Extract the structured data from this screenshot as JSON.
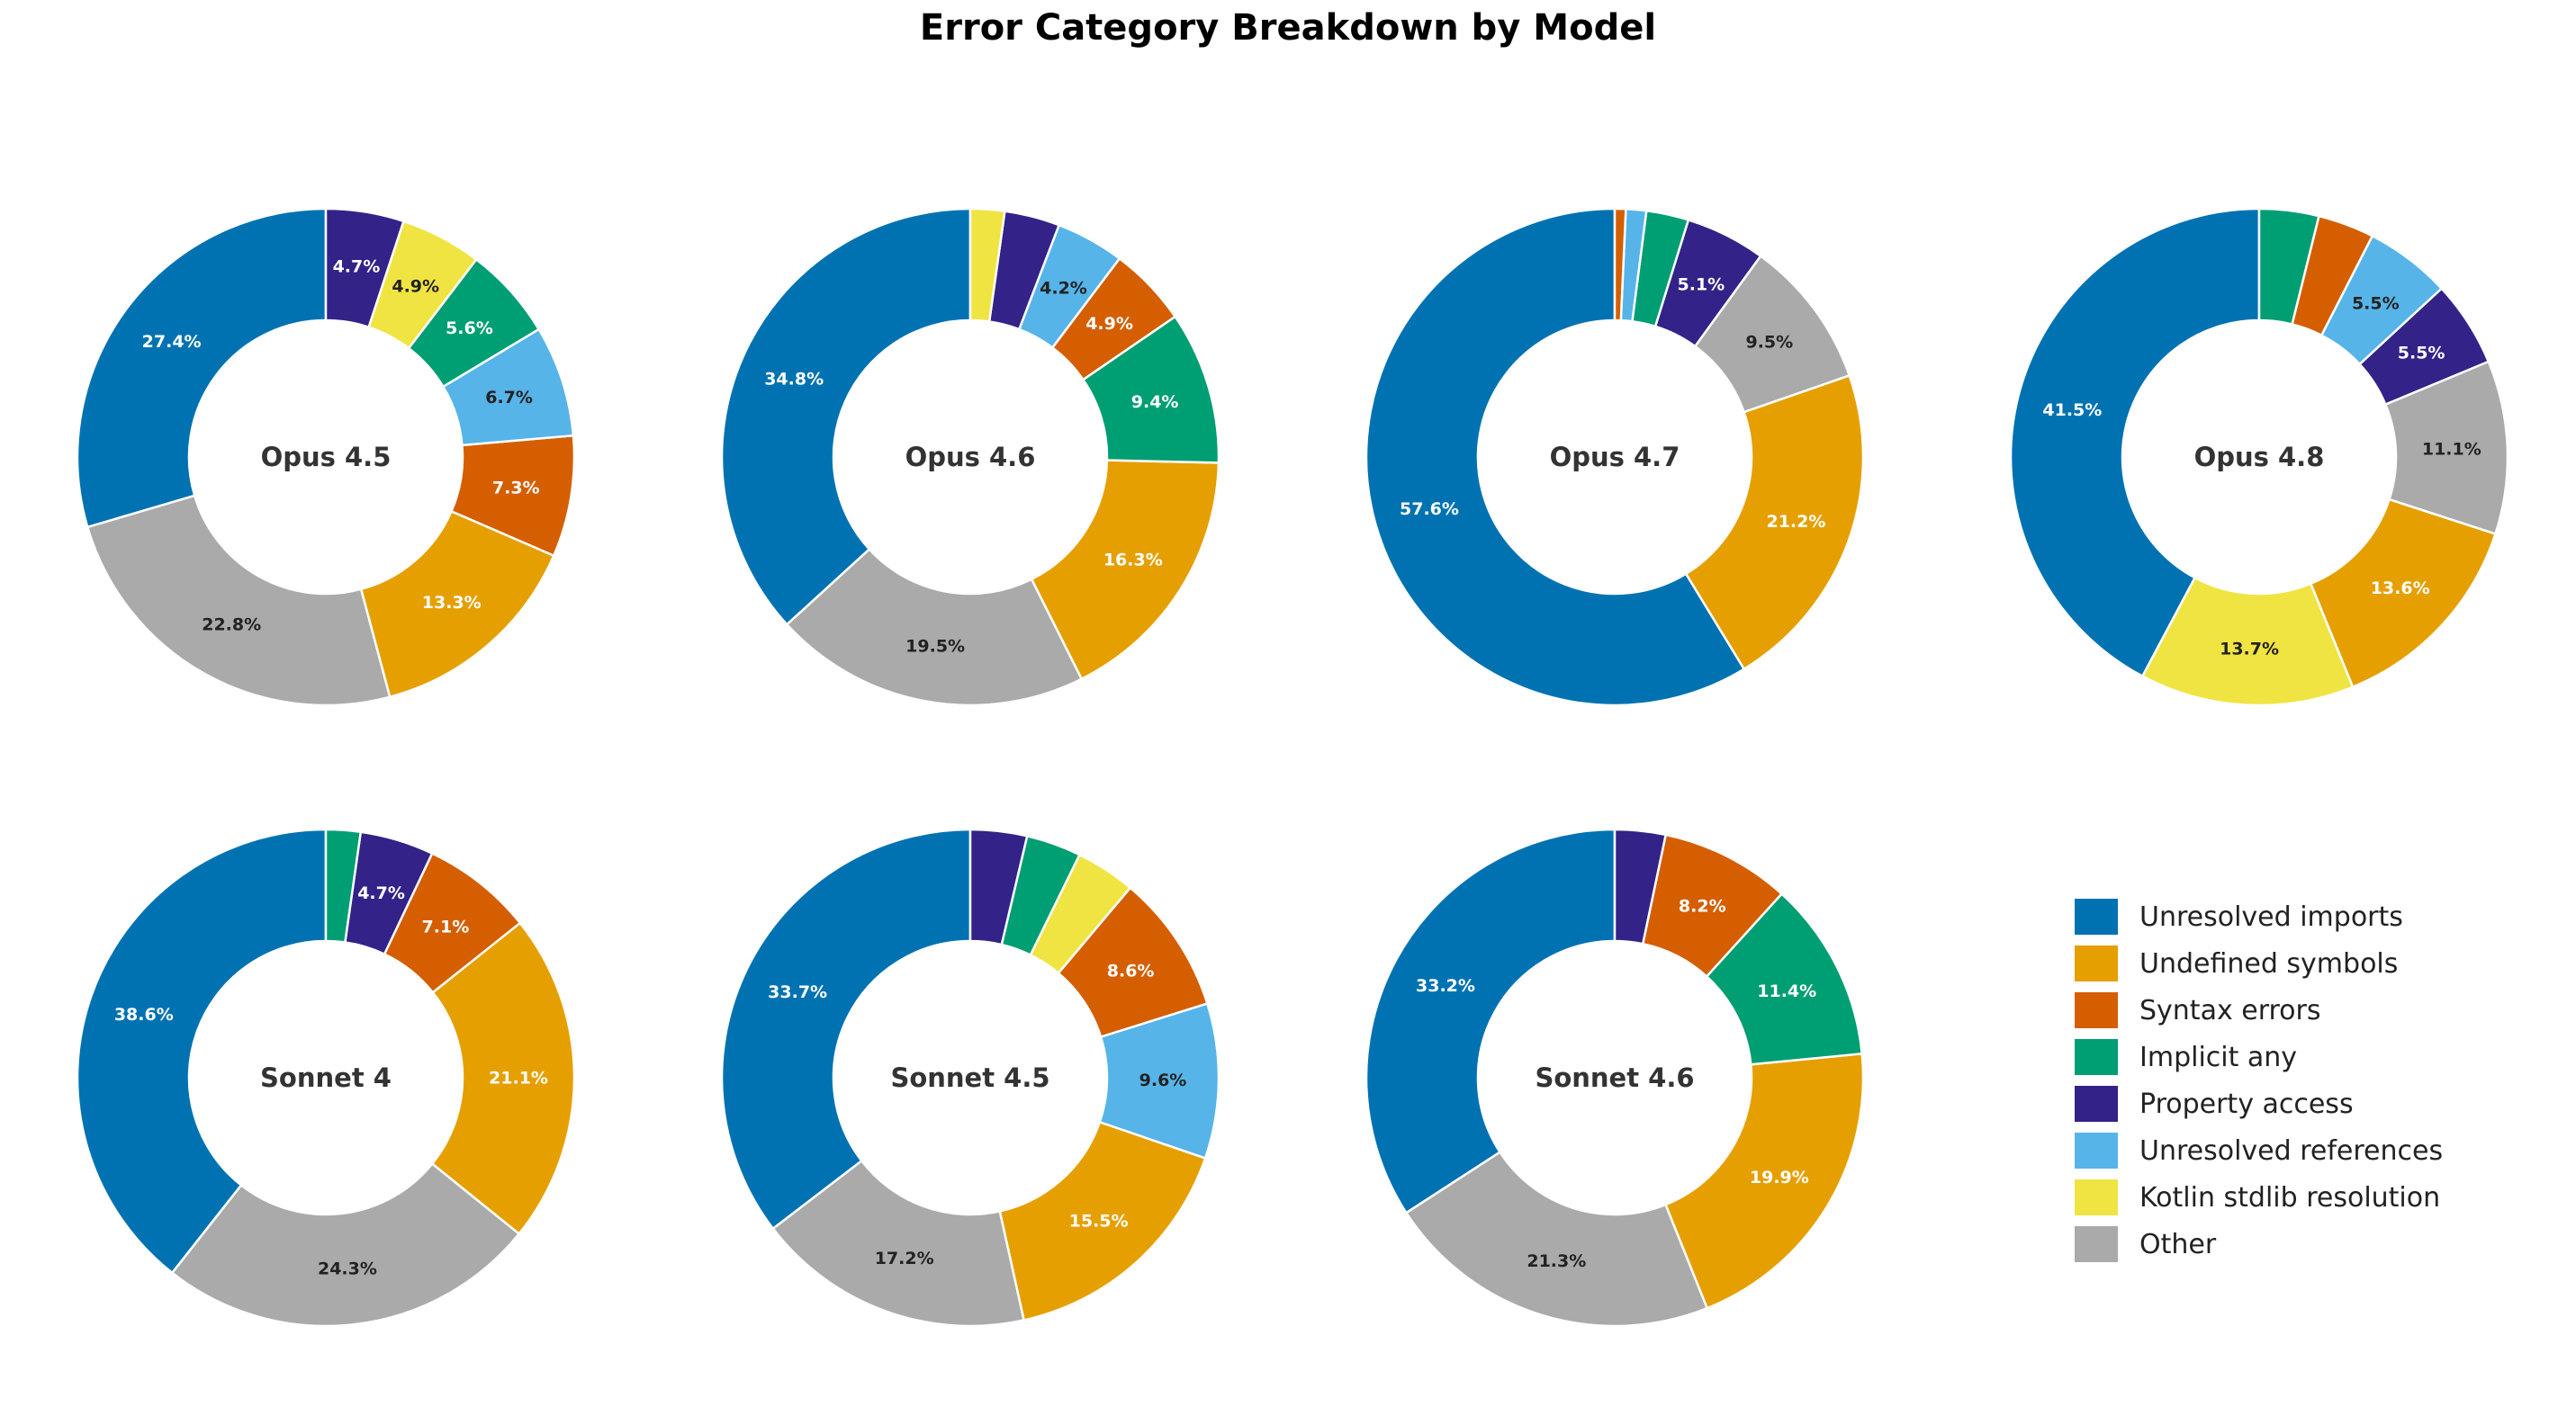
{
  "title": "Error Category Breakdown by Model",
  "categories": [
    {
      "name": "Unresolved imports",
      "color": "#0072B2"
    },
    {
      "name": "Undefined symbols",
      "color": "#E69F00"
    },
    {
      "name": "Syntax errors",
      "color": "#D55E00"
    },
    {
      "name": "Implicit any",
      "color": "#009E73"
    },
    {
      "name": "Property access",
      "color": "#332288"
    },
    {
      "name": "Unresolved references",
      "color": "#56B4E9"
    },
    {
      "name": "Kotlin stdlib resolution",
      "color": "#F0E442"
    },
    {
      "name": "Other",
      "color": "#AAAAAA"
    }
  ],
  "chart_data": [
    {
      "type": "pie",
      "name": "Opus 4.5",
      "slices": [
        {
          "category": "Unresolved imports",
          "value": 27.4
        },
        {
          "category": "Other",
          "value": 22.8
        },
        {
          "category": "Undefined symbols",
          "value": 13.3
        },
        {
          "category": "Syntax errors",
          "value": 7.3
        },
        {
          "category": "Unresolved references",
          "value": 6.7
        },
        {
          "category": "Implicit any",
          "value": 5.6
        },
        {
          "category": "Kotlin stdlib resolution",
          "value": 4.9
        },
        {
          "category": "Property access",
          "value": 4.7
        }
      ]
    },
    {
      "type": "pie",
      "name": "Opus 4.6",
      "slices": [
        {
          "category": "Unresolved imports",
          "value": 34.8
        },
        {
          "category": "Other",
          "value": 19.5
        },
        {
          "category": "Undefined symbols",
          "value": 16.3
        },
        {
          "category": "Implicit any",
          "value": 9.4
        },
        {
          "category": "Syntax errors",
          "value": 4.9
        },
        {
          "category": "Unresolved references",
          "value": 4.2
        },
        {
          "category": "Property access",
          "value": 3.4
        },
        {
          "category": "Kotlin stdlib resolution",
          "value": 2.1
        }
      ]
    },
    {
      "type": "pie",
      "name": "Opus 4.7",
      "slices": [
        {
          "category": "Unresolved imports",
          "value": 57.6
        },
        {
          "category": "Undefined symbols",
          "value": 21.2
        },
        {
          "category": "Other",
          "value": 9.5
        },
        {
          "category": "Property access",
          "value": 5.1
        },
        {
          "category": "Implicit any",
          "value": 2.7
        },
        {
          "category": "Unresolved references",
          "value": 1.3
        },
        {
          "category": "Syntax errors",
          "value": 0.7
        }
      ]
    },
    {
      "type": "pie",
      "name": "Opus 4.8",
      "slices": [
        {
          "category": "Unresolved imports",
          "value": 41.5
        },
        {
          "category": "Kotlin stdlib resolution",
          "value": 13.7
        },
        {
          "category": "Undefined symbols",
          "value": 13.6
        },
        {
          "category": "Other",
          "value": 11.1
        },
        {
          "category": "Property access",
          "value": 5.5
        },
        {
          "category": "Unresolved references",
          "value": 5.5
        },
        {
          "category": "Syntax errors",
          "value": 3.6
        },
        {
          "category": "Implicit any",
          "value": 3.8
        }
      ]
    },
    {
      "type": "pie",
      "name": "Sonnet 4",
      "slices": [
        {
          "category": "Unresolved imports",
          "value": 38.6
        },
        {
          "category": "Other",
          "value": 24.3
        },
        {
          "category": "Undefined symbols",
          "value": 21.1
        },
        {
          "category": "Syntax errors",
          "value": 7.1
        },
        {
          "category": "Property access",
          "value": 4.7
        },
        {
          "category": "Implicit any",
          "value": 2.2
        }
      ]
    },
    {
      "type": "pie",
      "name": "Sonnet 4.5",
      "slices": [
        {
          "category": "Unresolved imports",
          "value": 33.7
        },
        {
          "category": "Other",
          "value": 17.2
        },
        {
          "category": "Undefined symbols",
          "value": 15.5
        },
        {
          "category": "Unresolved references",
          "value": 9.6
        },
        {
          "category": "Syntax errors",
          "value": 8.6
        },
        {
          "category": "Kotlin stdlib resolution",
          "value": 3.7
        },
        {
          "category": "Implicit any",
          "value": 3.4
        },
        {
          "category": "Property access",
          "value": 3.5
        }
      ]
    },
    {
      "type": "pie",
      "name": "Sonnet 4.6",
      "slices": [
        {
          "category": "Unresolved imports",
          "value": 33.2
        },
        {
          "category": "Other",
          "value": 21.3
        },
        {
          "category": "Undefined symbols",
          "value": 19.9
        },
        {
          "category": "Implicit any",
          "value": 11.4
        },
        {
          "category": "Syntax errors",
          "value": 8.2
        },
        {
          "category": "Property access",
          "value": 3.2
        }
      ]
    }
  ]
}
